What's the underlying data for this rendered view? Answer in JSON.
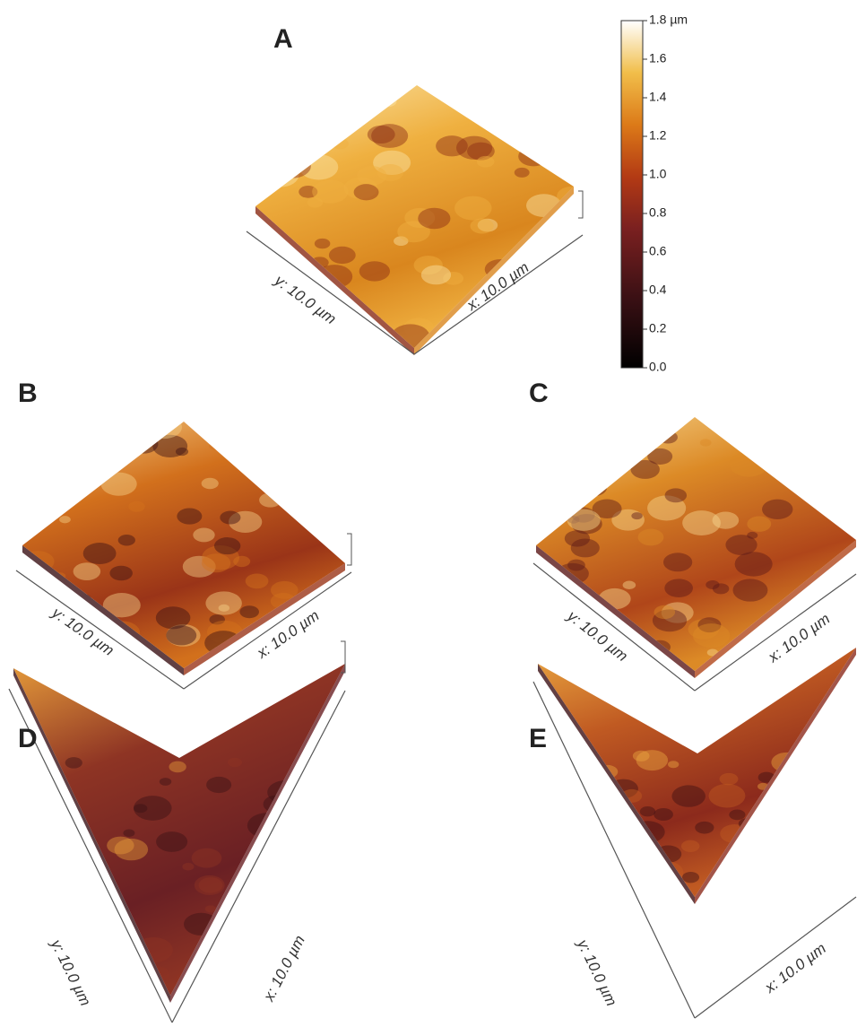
{
  "panels": [
    {
      "label": "A",
      "y_axis_label": "y: 10.0 µm",
      "x_axis_label": "x: 10.0 µm"
    },
    {
      "label": "B",
      "y_axis_label": "y: 10.0 µm",
      "x_axis_label": "x: 10.0 µm"
    },
    {
      "label": "C",
      "y_axis_label": "y: 10.0 µm",
      "x_axis_label": "x: 10.0 µm"
    },
    {
      "label": "D",
      "y_axis_label": "y: 10.0 µm",
      "x_axis_label": "x: 10.0 µm"
    },
    {
      "label": "E",
      "y_axis_label": "y: 10.0 µm",
      "x_axis_label": "x: 10.0 µm"
    }
  ],
  "colorbar": {
    "ticks": [
      {
        "value": 0,
        "label": "0.0"
      },
      {
        "value": 0.2,
        "label": "0.2"
      },
      {
        "value": 0.4,
        "label": "0.4"
      },
      {
        "value": 0.6,
        "label": "0.6"
      },
      {
        "value": 0.8,
        "label": "0.8"
      },
      {
        "value": 1,
        "label": "1.0"
      },
      {
        "value": 1.2,
        "label": "1.2"
      },
      {
        "value": 1.4,
        "label": "1.4"
      },
      {
        "value": 1.6,
        "label": "1.6"
      },
      {
        "value": 1.8,
        "label": "1.8 µm"
      }
    ]
  }
}
